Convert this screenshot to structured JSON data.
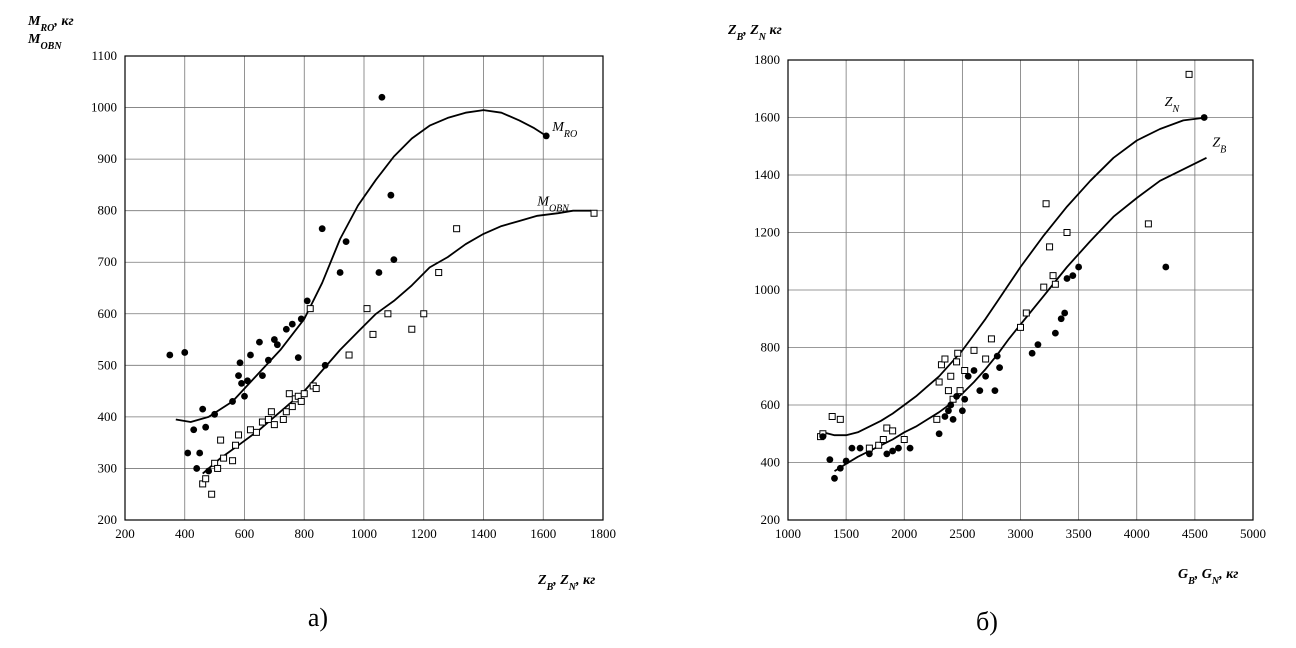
{
  "chart_data": [
    {
      "type": "scatter",
      "caption": "а)",
      "ylabel_line1": "M_RO, кг",
      "ylabel_line2": "M_OBN",
      "xlabel": "Z_B, Z_N, кг",
      "xlim": [
        200,
        1800
      ],
      "ylim": [
        200,
        1100
      ],
      "xticks": [
        200,
        400,
        600,
        800,
        1000,
        1200,
        1400,
        1600,
        1800
      ],
      "yticks": [
        200,
        300,
        400,
        500,
        600,
        700,
        800,
        900,
        1000,
        1100
      ],
      "grid": true,
      "series": [
        {
          "name": "M_RO",
          "marker": "filled-circle",
          "points": [
            [
              350,
              520
            ],
            [
              400,
              525
            ],
            [
              410,
              330
            ],
            [
              430,
              375
            ],
            [
              440,
              300
            ],
            [
              450,
              330
            ],
            [
              460,
              415
            ],
            [
              470,
              380
            ],
            [
              480,
              295
            ],
            [
              500,
              405
            ],
            [
              560,
              430
            ],
            [
              580,
              480
            ],
            [
              585,
              505
            ],
            [
              590,
              465
            ],
            [
              600,
              440
            ],
            [
              610,
              470
            ],
            [
              620,
              520
            ],
            [
              650,
              545
            ],
            [
              660,
              480
            ],
            [
              680,
              510
            ],
            [
              700,
              550
            ],
            [
              710,
              540
            ],
            [
              740,
              570
            ],
            [
              760,
              580
            ],
            [
              780,
              515
            ],
            [
              790,
              590
            ],
            [
              810,
              625
            ],
            [
              860,
              765
            ],
            [
              870,
              500
            ],
            [
              920,
              680
            ],
            [
              940,
              740
            ],
            [
              1050,
              680
            ],
            [
              1060,
              1020
            ],
            [
              1090,
              830
            ],
            [
              1100,
              705
            ],
            [
              1610,
              945
            ]
          ]
        },
        {
          "name": "M_OBN",
          "marker": "open-square",
          "points": [
            [
              460,
              270
            ],
            [
              470,
              280
            ],
            [
              490,
              250
            ],
            [
              500,
              310
            ],
            [
              510,
              300
            ],
            [
              520,
              355
            ],
            [
              530,
              320
            ],
            [
              560,
              315
            ],
            [
              570,
              345
            ],
            [
              580,
              365
            ],
            [
              620,
              375
            ],
            [
              640,
              370
            ],
            [
              660,
              390
            ],
            [
              680,
              395
            ],
            [
              690,
              410
            ],
            [
              700,
              385
            ],
            [
              730,
              395
            ],
            [
              740,
              410
            ],
            [
              750,
              445
            ],
            [
              760,
              420
            ],
            [
              770,
              435
            ],
            [
              780,
              440
            ],
            [
              790,
              430
            ],
            [
              800,
              445
            ],
            [
              820,
              610
            ],
            [
              830,
              460
            ],
            [
              840,
              455
            ],
            [
              950,
              520
            ],
            [
              1010,
              610
            ],
            [
              1030,
              560
            ],
            [
              1080,
              600
            ],
            [
              1160,
              570
            ],
            [
              1200,
              600
            ],
            [
              1250,
              680
            ],
            [
              1310,
              765
            ],
            [
              1770,
              795
            ]
          ]
        }
      ],
      "curves": [
        {
          "name": "M_RO",
          "points": [
            [
              370,
              395
            ],
            [
              420,
              390
            ],
            [
              480,
              400
            ],
            [
              560,
              430
            ],
            [
              640,
              480
            ],
            [
              720,
              530
            ],
            [
              800,
              590
            ],
            [
              860,
              660
            ],
            [
              920,
              745
            ],
            [
              980,
              810
            ],
            [
              1040,
              860
            ],
            [
              1100,
              905
            ],
            [
              1160,
              940
            ],
            [
              1220,
              965
            ],
            [
              1280,
              980
            ],
            [
              1340,
              990
            ],
            [
              1400,
              995
            ],
            [
              1460,
              990
            ],
            [
              1520,
              975
            ],
            [
              1570,
              960
            ],
            [
              1610,
              945
            ]
          ]
        },
        {
          "name": "M_OBN",
          "points": [
            [
              460,
              290
            ],
            [
              520,
              320
            ],
            [
              580,
              345
            ],
            [
              650,
              375
            ],
            [
              720,
              410
            ],
            [
              800,
              450
            ],
            [
              860,
              490
            ],
            [
              920,
              530
            ],
            [
              980,
              565
            ],
            [
              1040,
              600
            ],
            [
              1100,
              625
            ],
            [
              1160,
              655
            ],
            [
              1220,
              690
            ],
            [
              1280,
              710
            ],
            [
              1340,
              735
            ],
            [
              1400,
              755
            ],
            [
              1460,
              770
            ],
            [
              1520,
              780
            ],
            [
              1580,
              790
            ],
            [
              1650,
              795
            ],
            [
              1700,
              800
            ],
            [
              1760,
              800
            ]
          ]
        }
      ],
      "curve_labels": [
        {
          "text": "M_RO",
          "x": 1630,
          "y": 955
        },
        {
          "text": "M_OBN",
          "x": 1580,
          "y": 810
        }
      ]
    },
    {
      "type": "scatter",
      "caption": "б)",
      "ylabel": "Z_B, Z_N кг",
      "xlabel": "G_B, G_N,  кг",
      "xlim": [
        1000,
        5000
      ],
      "ylim": [
        200,
        1800
      ],
      "xticks": [
        1000,
        1500,
        2000,
        2500,
        3000,
        3500,
        4000,
        4500,
        5000
      ],
      "yticks": [
        200,
        400,
        600,
        800,
        1000,
        1200,
        1400,
        1600,
        1800
      ],
      "grid": true,
      "series": [
        {
          "name": "Z_N",
          "marker": "open-square",
          "points": [
            [
              1280,
              490
            ],
            [
              1300,
              500
            ],
            [
              1380,
              560
            ],
            [
              1450,
              550
            ],
            [
              1700,
              450
            ],
            [
              1780,
              460
            ],
            [
              1820,
              480
            ],
            [
              1850,
              520
            ],
            [
              1900,
              510
            ],
            [
              2000,
              480
            ],
            [
              2280,
              550
            ],
            [
              2300,
              680
            ],
            [
              2320,
              740
            ],
            [
              2350,
              760
            ],
            [
              2380,
              650
            ],
            [
              2400,
              700
            ],
            [
              2420,
              620
            ],
            [
              2450,
              750
            ],
            [
              2460,
              780
            ],
            [
              2480,
              650
            ],
            [
              2520,
              720
            ],
            [
              2600,
              790
            ],
            [
              2700,
              760
            ],
            [
              2750,
              830
            ],
            [
              3000,
              870
            ],
            [
              3050,
              920
            ],
            [
              3200,
              1010
            ],
            [
              3220,
              1300
            ],
            [
              3250,
              1150
            ],
            [
              3280,
              1050
            ],
            [
              3300,
              1020
            ],
            [
              3400,
              1200
            ],
            [
              4100,
              1230
            ],
            [
              4450,
              1750
            ]
          ]
        },
        {
          "name": "Z_B",
          "marker": "filled-circle",
          "points": [
            [
              1300,
              490
            ],
            [
              1360,
              410
            ],
            [
              1400,
              345
            ],
            [
              1450,
              380
            ],
            [
              1500,
              405
            ],
            [
              1550,
              450
            ],
            [
              1620,
              450
            ],
            [
              1700,
              430
            ],
            [
              1850,
              430
            ],
            [
              1900,
              440
            ],
            [
              1950,
              450
            ],
            [
              2050,
              450
            ],
            [
              2300,
              500
            ],
            [
              2350,
              560
            ],
            [
              2380,
              580
            ],
            [
              2400,
              600
            ],
            [
              2420,
              550
            ],
            [
              2450,
              630
            ],
            [
              2500,
              580
            ],
            [
              2520,
              620
            ],
            [
              2550,
              700
            ],
            [
              2600,
              720
            ],
            [
              2650,
              650
            ],
            [
              2700,
              700
            ],
            [
              2780,
              650
            ],
            [
              2800,
              770
            ],
            [
              2820,
              730
            ],
            [
              3100,
              780
            ],
            [
              3150,
              810
            ],
            [
              3300,
              850
            ],
            [
              3350,
              900
            ],
            [
              3380,
              920
            ],
            [
              3400,
              1040
            ],
            [
              3450,
              1050
            ],
            [
              3500,
              1080
            ],
            [
              4250,
              1080
            ],
            [
              4580,
              1600
            ]
          ]
        }
      ],
      "curves": [
        {
          "name": "Z_N",
          "points": [
            [
              1300,
              505
            ],
            [
              1400,
              495
            ],
            [
              1500,
              495
            ],
            [
              1600,
              505
            ],
            [
              1700,
              525
            ],
            [
              1800,
              545
            ],
            [
              1900,
              570
            ],
            [
              2000,
              600
            ],
            [
              2100,
              630
            ],
            [
              2200,
              665
            ],
            [
              2300,
              700
            ],
            [
              2400,
              745
            ],
            [
              2500,
              790
            ],
            [
              2600,
              845
            ],
            [
              2700,
              900
            ],
            [
              2800,
              960
            ],
            [
              2900,
              1020
            ],
            [
              3000,
              1080
            ],
            [
              3200,
              1190
            ],
            [
              3400,
              1290
            ],
            [
              3600,
              1380
            ],
            [
              3800,
              1460
            ],
            [
              4000,
              1520
            ],
            [
              4200,
              1560
            ],
            [
              4400,
              1590
            ],
            [
              4600,
              1600
            ]
          ]
        },
        {
          "name": "Z_B",
          "points": [
            [
              1400,
              370
            ],
            [
              1500,
              395
            ],
            [
              1600,
              420
            ],
            [
              1700,
              440
            ],
            [
              1800,
              460
            ],
            [
              1900,
              480
            ],
            [
              2000,
              505
            ],
            [
              2100,
              525
            ],
            [
              2200,
              550
            ],
            [
              2300,
              575
            ],
            [
              2400,
              605
            ],
            [
              2500,
              640
            ],
            [
              2600,
              680
            ],
            [
              2700,
              725
            ],
            [
              2800,
              775
            ],
            [
              2900,
              830
            ],
            [
              3000,
              880
            ],
            [
              3200,
              980
            ],
            [
              3400,
              1080
            ],
            [
              3600,
              1170
            ],
            [
              3800,
              1255
            ],
            [
              4000,
              1320
            ],
            [
              4200,
              1380
            ],
            [
              4400,
              1420
            ],
            [
              4600,
              1460
            ]
          ]
        }
      ],
      "curve_labels": [
        {
          "text": "Z_N",
          "x": 4240,
          "y": 1640
        },
        {
          "text": "Z_B",
          "x": 4650,
          "y": 1500
        }
      ]
    }
  ]
}
